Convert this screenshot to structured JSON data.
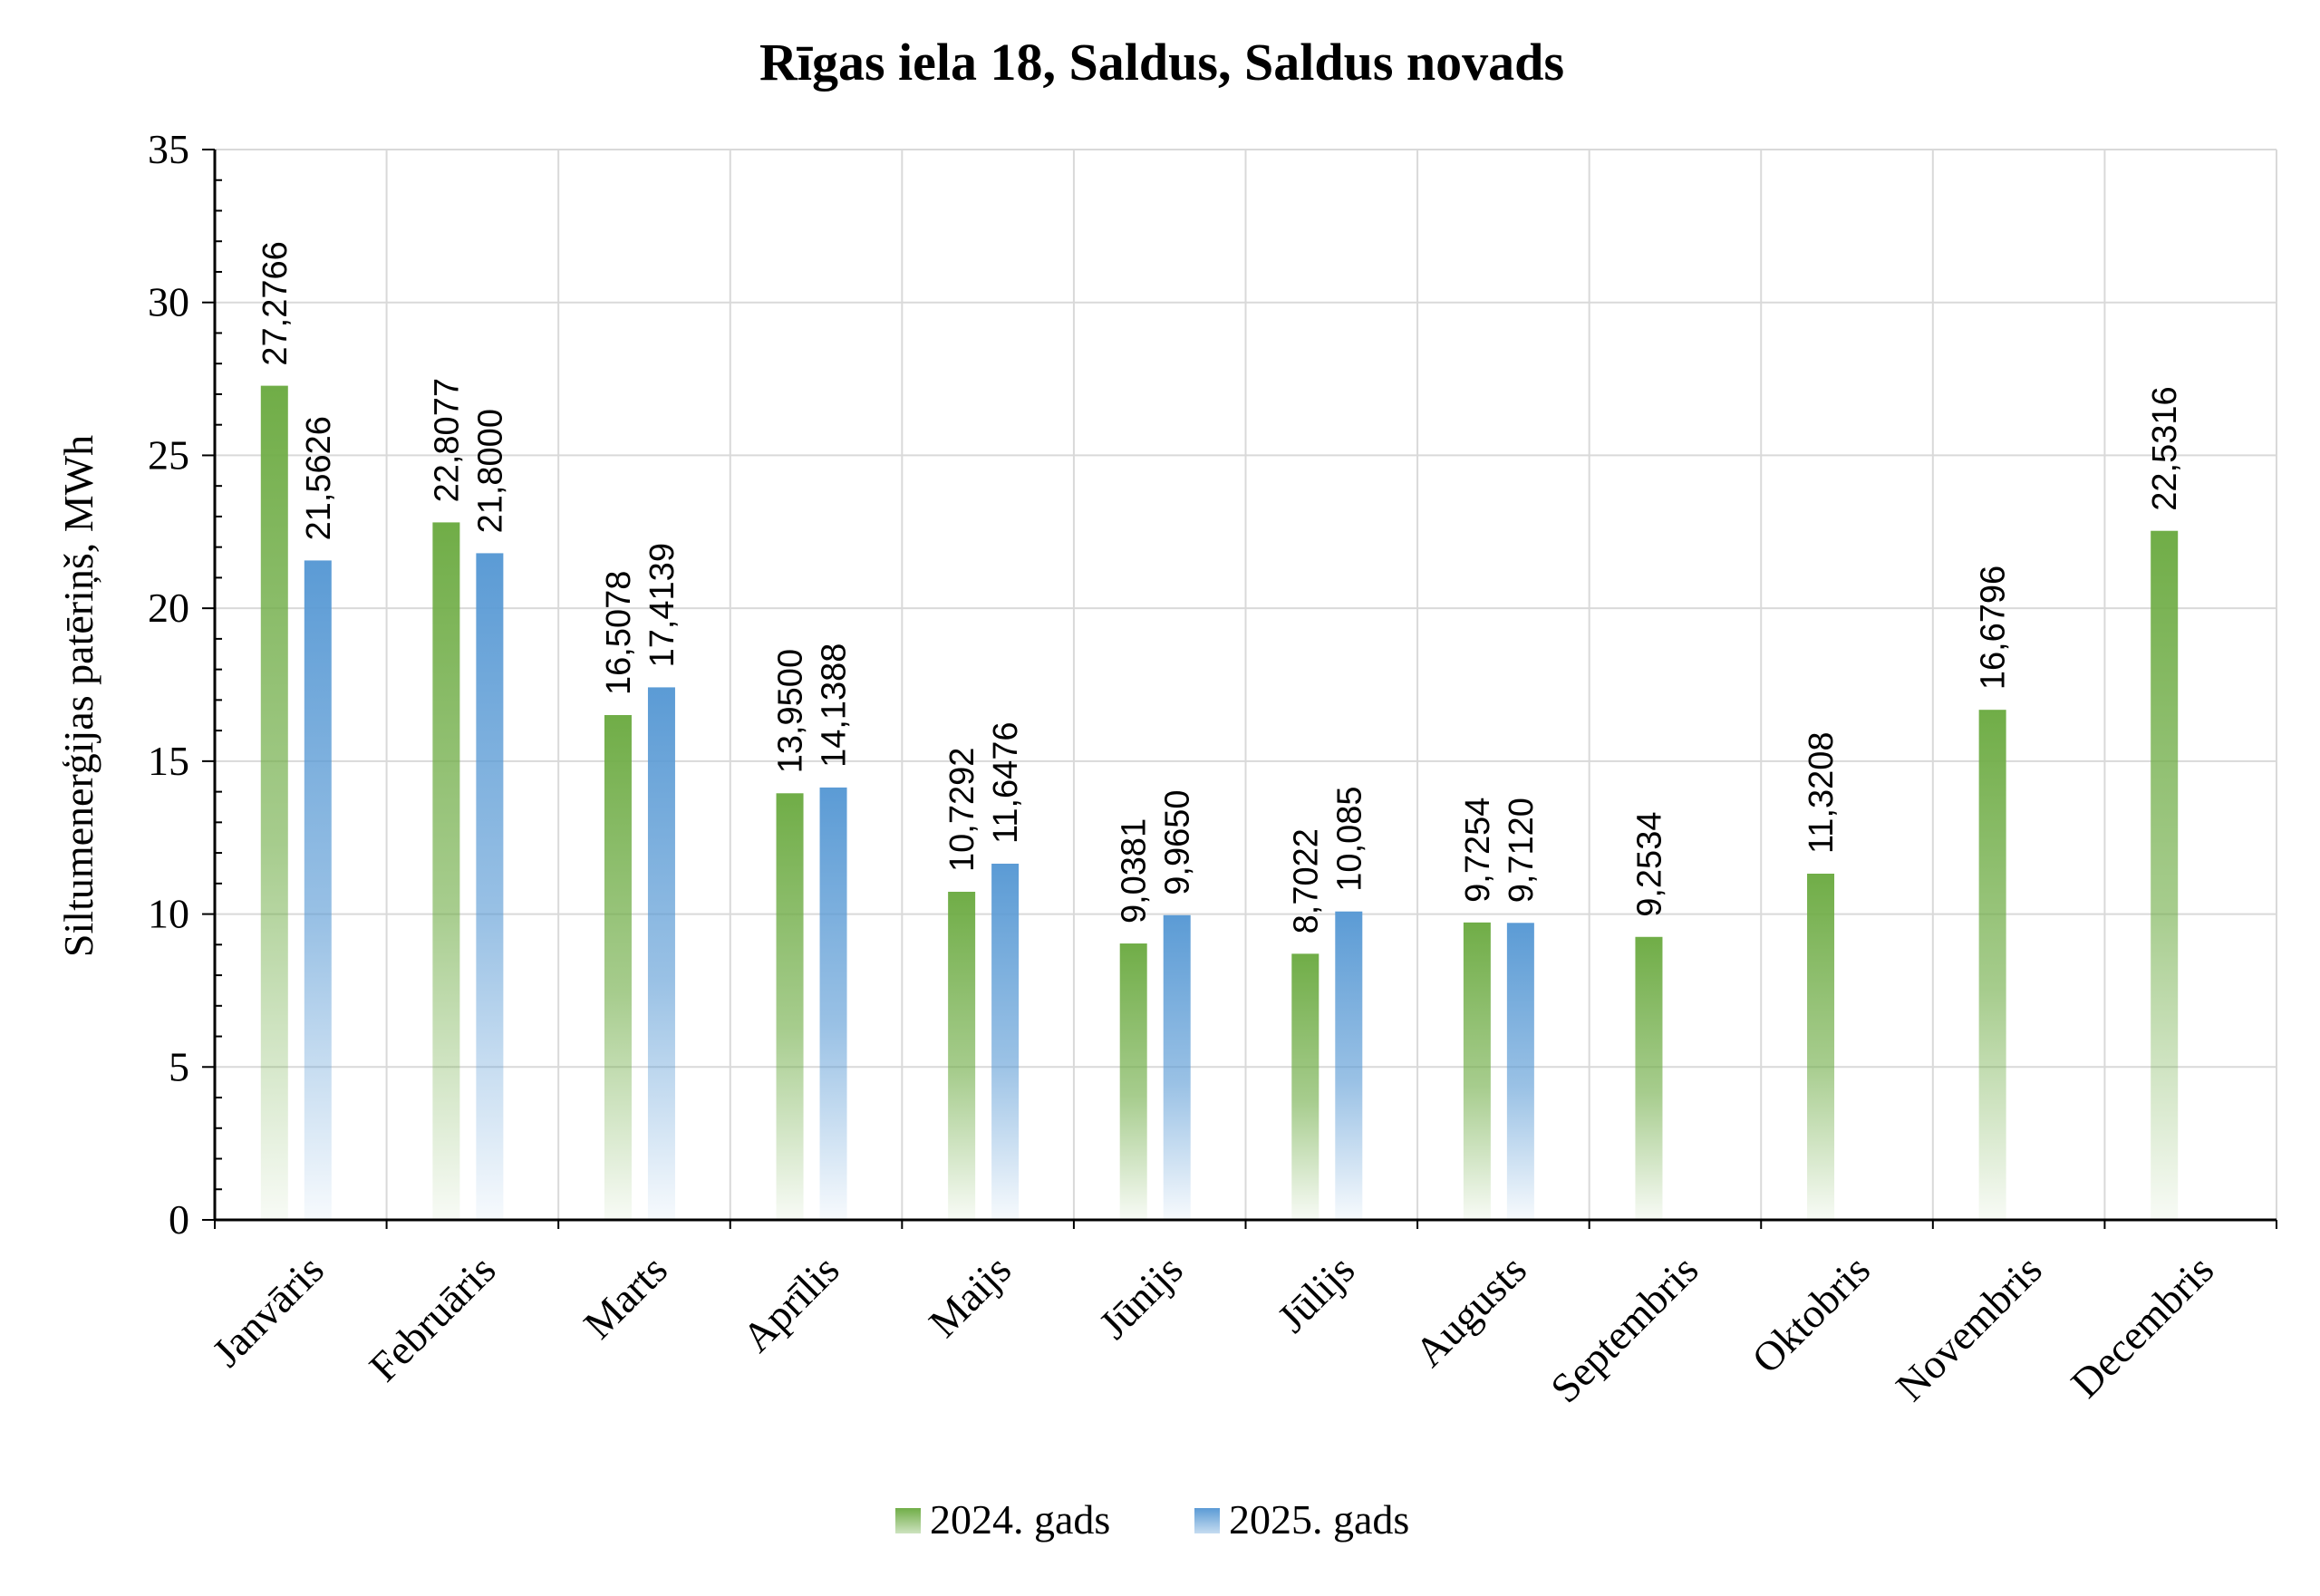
{
  "chart_data": {
    "type": "bar",
    "title": "Rīgas iela 18, Saldus, Saldus novads",
    "ylabel": "Siltumenerģijas patēriņš, MWh",
    "xlabel": "",
    "ylim": [
      0,
      35
    ],
    "yticks": [
      0,
      5,
      10,
      15,
      20,
      25,
      30,
      35
    ],
    "grid": true,
    "legend_position": "bottom",
    "categories": [
      "Janvāris",
      "Februāris",
      "Marts",
      "Aprīlis",
      "Maijs",
      "Jūnijs",
      "Jūlijs",
      "Augusts",
      "Septembris",
      "Oktobris",
      "Novembris",
      "Decembris"
    ],
    "series": [
      {
        "name": "2024. gads",
        "color": "#70ad47",
        "values": [
          27.2766,
          22.8077,
          16.5078,
          13.95,
          10.7292,
          9.0381,
          8.7022,
          9.7254,
          9.2534,
          11.3208,
          16.6796,
          22.5316
        ],
        "labels": [
          "27,2766",
          "22,8077",
          "16,5078",
          "13,9500",
          "10,7292",
          "9,0381",
          "8,7022",
          "9,7254",
          "9,2534",
          "11,3208",
          "16,6796",
          "22,5316"
        ]
      },
      {
        "name": "2025. gads",
        "color": "#5b9bd5",
        "values": [
          21.5626,
          21.8,
          17.4139,
          14.1388,
          11.6476,
          9.965,
          10.085,
          9.712,
          null,
          null,
          null,
          null
        ],
        "labels": [
          "21,5626",
          "21,8000",
          "17,4139",
          "14,1388",
          "11,6476",
          "9,9650",
          "10,085",
          "9,7120",
          "",
          "",
          "",
          ""
        ]
      }
    ]
  }
}
